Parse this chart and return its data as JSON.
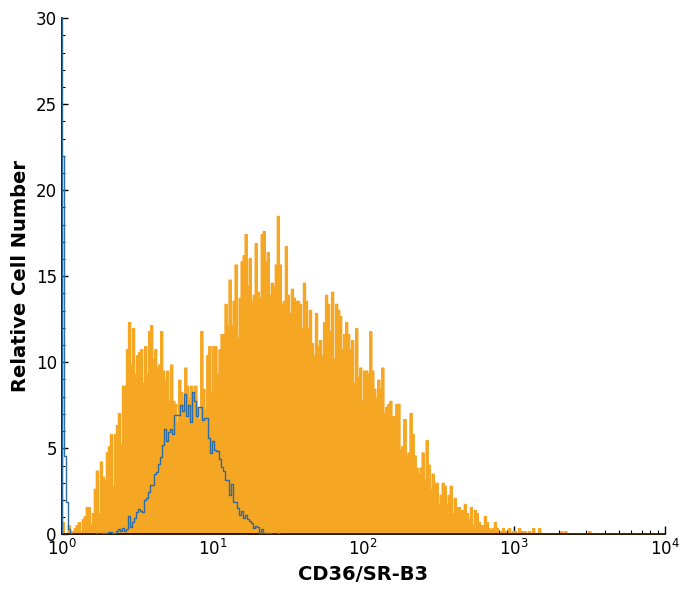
{
  "title": "",
  "xlabel": "CD36/SR-B3",
  "ylabel": "Relative Cell Number",
  "xlim_log": [
    1,
    10000
  ],
  "ylim": [
    0,
    30
  ],
  "yticks": [
    0,
    5,
    10,
    15,
    20,
    25,
    30
  ],
  "blue_color": "#2e6da4",
  "orange_color": "#f5a623",
  "background_color": "#ffffff",
  "xlabel_fontsize": 14,
  "ylabel_fontsize": 14,
  "tick_fontsize": 12,
  "blue_spike_height": 30,
  "orange_spike_height": 18,
  "blue_peak": 22,
  "orange_peak": 18.5,
  "n_bins": 300
}
